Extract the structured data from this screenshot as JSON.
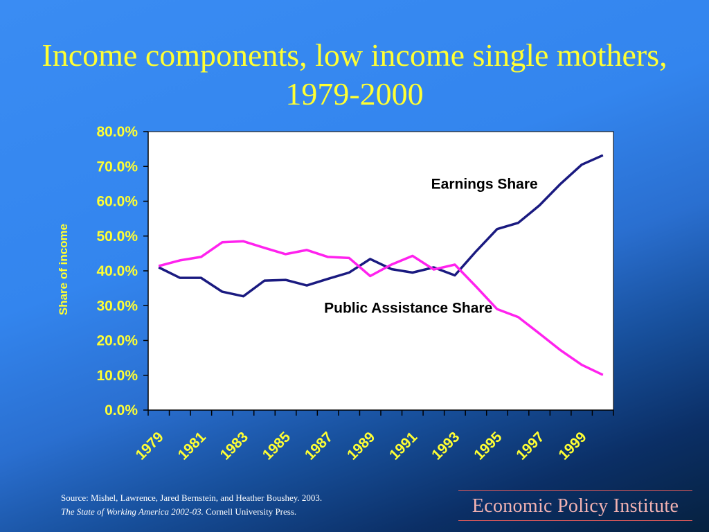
{
  "slide": {
    "title": "Income components, low income single mothers, 1979-2000",
    "source_line1": "Source:  Mishel, Lawrence, Jared Bernstein, and Heather Boushey. 2003.",
    "source_line2_italic": "The State of Working America 2002-03.",
    "source_line2_rest": " Cornell University Press.",
    "logo_text": "Economic Policy Institute"
  },
  "colors": {
    "background": "#3385ee",
    "title": "#ffff33",
    "earnings": "#1a1a80",
    "public_assistance": "#ff22ee",
    "plot_bg": "#ffffff"
  },
  "chart_data": {
    "type": "line",
    "title": "",
    "xlabel": "",
    "ylabel": "Share of income",
    "ylim": [
      0,
      0.8
    ],
    "yticks": [
      "0.0%",
      "10.0%",
      "20.0%",
      "30.0%",
      "40.0%",
      "50.0%",
      "60.0%",
      "70.0%",
      "80.0%"
    ],
    "x": [
      1979,
      1980,
      1981,
      1982,
      1983,
      1984,
      1985,
      1986,
      1987,
      1988,
      1989,
      1990,
      1991,
      1992,
      1993,
      1994,
      1995,
      1996,
      1997,
      1998,
      1999,
      2000
    ],
    "xtick_labels": [
      "1979",
      "1981",
      "1983",
      "1985",
      "1987",
      "1989",
      "1991",
      "1993",
      "1995",
      "1997",
      "1999"
    ],
    "grid": false,
    "series": [
      {
        "name": "Earnings Share",
        "color": "#1a1a80",
        "values": [
          0.41,
          0.38,
          0.38,
          0.34,
          0.327,
          0.372,
          0.374,
          0.358,
          0.377,
          0.395,
          0.434,
          0.405,
          0.395,
          0.41,
          0.387,
          0.456,
          0.52,
          0.538,
          0.588,
          0.65,
          0.705,
          0.732
        ]
      },
      {
        "name": "Public Assistance Share",
        "color": "#ff22ee",
        "values": [
          0.414,
          0.43,
          0.44,
          0.482,
          0.485,
          0.466,
          0.448,
          0.46,
          0.44,
          0.437,
          0.385,
          0.418,
          0.443,
          0.404,
          0.418,
          0.355,
          0.29,
          0.267,
          0.22,
          0.172,
          0.13,
          0.101
        ]
      }
    ],
    "annotations": [
      {
        "text": "Earnings Share",
        "x": 1994.4,
        "y": 0.636
      },
      {
        "text": "Public Assistance Share",
        "x": 1990.8,
        "y": 0.28
      }
    ]
  }
}
